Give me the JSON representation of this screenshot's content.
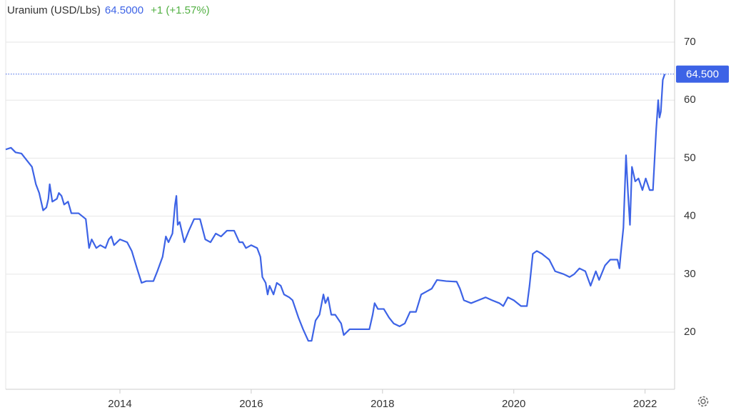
{
  "chart_data": {
    "type": "line",
    "title": "Uranium (USD/Lbs)",
    "price": "64.5000",
    "change": "+1 (+1.57%)",
    "last_value_label": "64.500",
    "xlim": [
      2012.26,
      2022.45
    ],
    "xticks": [
      2014,
      2016,
      2018,
      2020,
      2022
    ],
    "ylim": [
      10.15,
      77.27
    ],
    "yticks": [
      20,
      30,
      40,
      50,
      60,
      70
    ],
    "grid": true,
    "series": [
      {
        "name": "Uranium",
        "color": "#3d63e6",
        "x": [
          2012.26,
          2012.34,
          2012.41,
          2012.5,
          2012.59,
          2012.66,
          2012.72,
          2012.77,
          2012.83,
          2012.88,
          2012.91,
          2012.93,
          2012.97,
          2013.04,
          2013.07,
          2013.11,
          2013.15,
          2013.21,
          2013.26,
          2013.37,
          2013.48,
          2013.53,
          2013.57,
          2013.64,
          2013.7,
          2013.78,
          2013.83,
          2013.87,
          2013.91,
          2014.0,
          2014.11,
          2014.18,
          2014.26,
          2014.33,
          2014.4,
          2014.51,
          2014.57,
          2014.65,
          2014.7,
          2014.74,
          2014.8,
          2014.84,
          2014.86,
          2014.88,
          2014.91,
          2014.98,
          2015.05,
          2015.13,
          2015.22,
          2015.3,
          2015.38,
          2015.46,
          2015.54,
          2015.63,
          2015.74,
          2015.82,
          2015.87,
          2015.92,
          2016.0,
          2016.09,
          2016.14,
          2016.17,
          2016.22,
          2016.25,
          2016.28,
          2016.34,
          2016.39,
          2016.45,
          2016.5,
          2016.58,
          2016.63,
          2016.72,
          2016.79,
          2016.87,
          2016.92,
          2016.98,
          2017.04,
          2017.1,
          2017.13,
          2017.17,
          2017.22,
          2017.28,
          2017.37,
          2017.41,
          2017.5,
          2017.61,
          2017.72,
          2017.8,
          2017.85,
          2017.88,
          2017.93,
          2018.02,
          2018.1,
          2018.17,
          2018.26,
          2018.34,
          2018.42,
          2018.51,
          2018.59,
          2018.67,
          2018.75,
          2018.83,
          2018.97,
          2019.13,
          2019.18,
          2019.24,
          2019.35,
          2019.46,
          2019.57,
          2019.67,
          2019.78,
          2019.84,
          2019.91,
          2020.0,
          2020.11,
          2020.2,
          2020.24,
          2020.29,
          2020.35,
          2020.43,
          2020.54,
          2020.63,
          2020.76,
          2020.85,
          2020.92,
          2021.0,
          2021.09,
          2021.17,
          2021.25,
          2021.3,
          2021.39,
          2021.47,
          2021.58,
          2021.61,
          2021.63,
          2021.67,
          2021.71,
          2021.74,
          2021.77,
          2021.8,
          2021.85,
          2021.9,
          2021.96,
          2022.01,
          2022.07,
          2022.12,
          2022.17,
          2022.2,
          2022.22,
          2022.24,
          2022.27,
          2022.3
        ],
        "values": [
          51.5,
          51.8,
          51,
          50.8,
          49.5,
          48.5,
          45.5,
          44,
          41,
          41.5,
          43,
          45.5,
          42.5,
          43,
          44,
          43.5,
          42,
          42.5,
          40.5,
          40.5,
          39.5,
          34.5,
          36,
          34.5,
          35,
          34.5,
          36,
          36.5,
          35,
          36,
          35.5,
          34,
          31,
          28.5,
          28.8,
          28.8,
          30.5,
          33,
          36.5,
          35.5,
          37,
          42,
          43.5,
          38.5,
          39,
          35.5,
          37.5,
          39.5,
          39.5,
          36,
          35.5,
          37,
          36.5,
          37.5,
          37.5,
          35.5,
          35.5,
          34.5,
          35,
          34.5,
          33,
          29.5,
          28.5,
          26.5,
          28,
          26.5,
          28.5,
          28,
          26.5,
          26,
          25.5,
          22.5,
          20.5,
          18.5,
          18.5,
          22,
          23,
          26.5,
          25,
          26,
          23,
          23,
          21.5,
          19.5,
          20.5,
          20.5,
          20.5,
          20.5,
          23,
          25,
          24,
          24,
          22.5,
          21.5,
          21,
          21.5,
          23.5,
          23.5,
          26.5,
          27,
          27.5,
          29,
          28.8,
          28.7,
          27.5,
          25.5,
          25,
          25.5,
          26,
          25.5,
          25,
          24.5,
          26,
          25.5,
          24.5,
          24.5,
          28,
          33.5,
          34,
          33.5,
          32.5,
          30.5,
          30,
          29.5,
          30,
          31,
          30.5,
          28,
          30.5,
          29,
          31.5,
          32.5,
          32.5,
          31,
          33.5,
          38,
          50.5,
          44,
          38.5,
          48.5,
          46,
          46.5,
          44.5,
          46.5,
          44.5,
          44.5,
          55,
          60,
          57,
          58,
          63.5,
          64.5
        ]
      }
    ]
  }
}
